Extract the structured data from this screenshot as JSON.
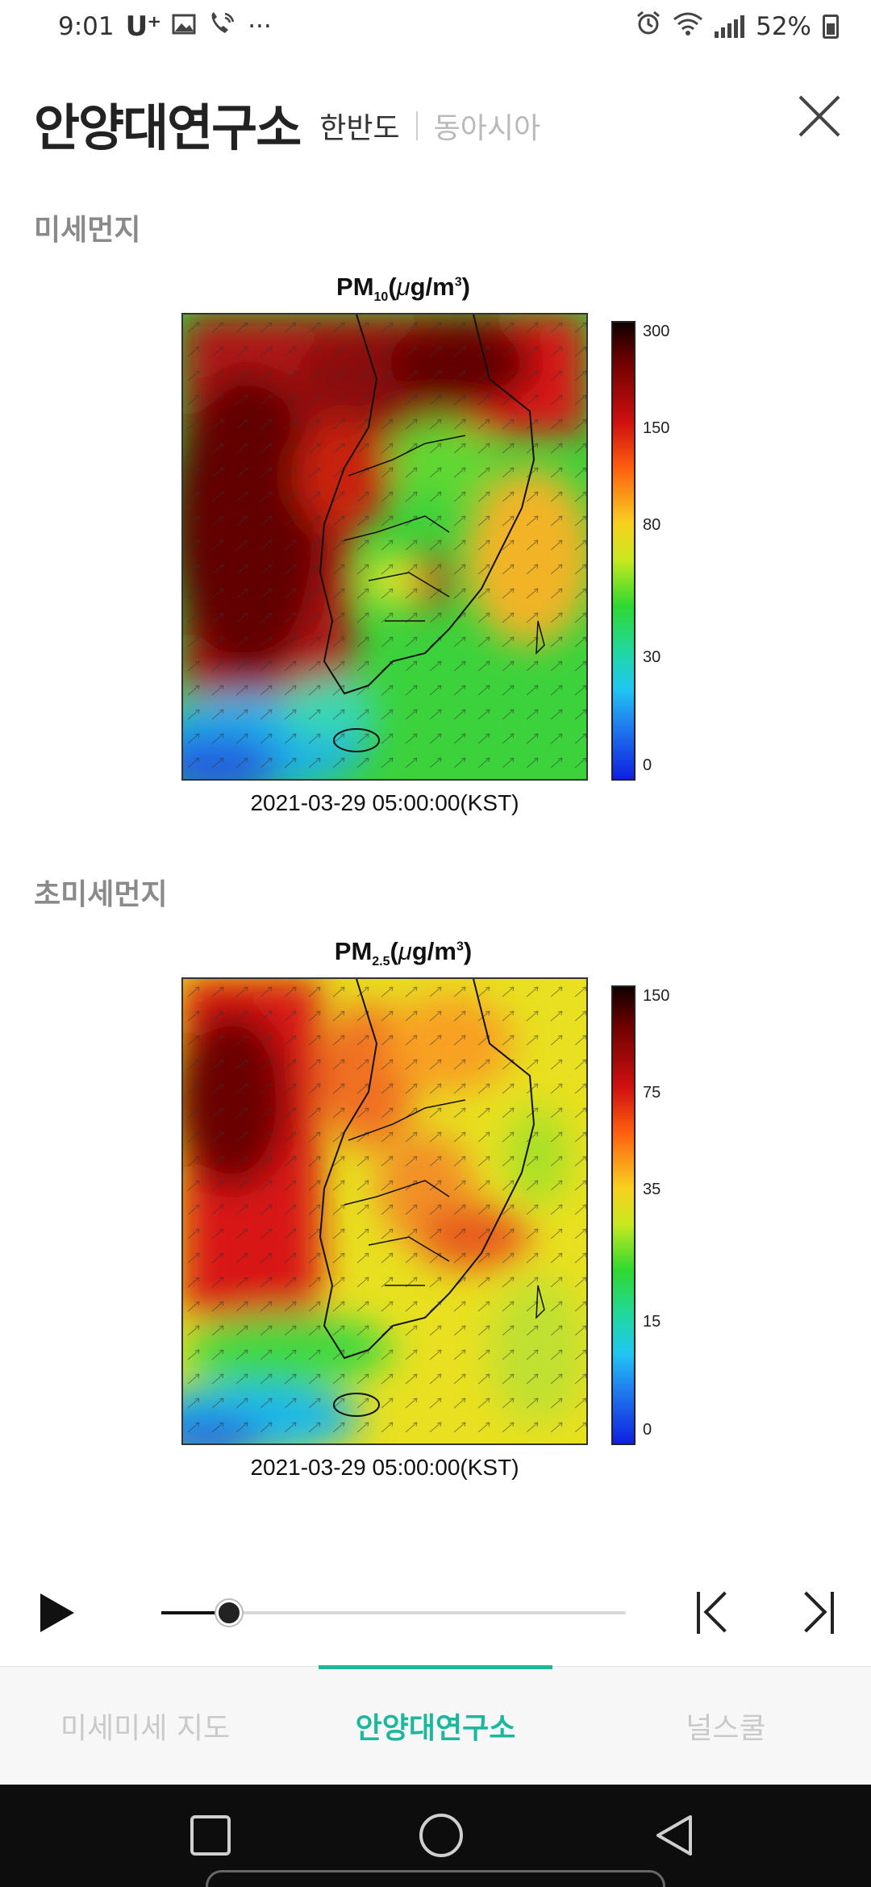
{
  "status_bar": {
    "time": "9:01",
    "carrier": "U⁺",
    "more": "···",
    "battery": "52%",
    "left_icons": [
      "gallery-icon",
      "wifi-call-icon"
    ],
    "right_icons": [
      "alarm-icon",
      "wifi-icon",
      "signal-icon",
      "battery-icon"
    ]
  },
  "header": {
    "title": "안양대연구소",
    "region_tabs": [
      {
        "label": "한반도",
        "active": true
      },
      {
        "label": "동아시아",
        "active": false
      }
    ]
  },
  "sections": [
    {
      "label": "미세먼지",
      "figure": {
        "title_main": "PM",
        "title_sub": "10",
        "title_unit_pre": "(",
        "title_unit_mu": "μ",
        "title_unit_mid": "g/m",
        "title_unit_sup": "3",
        "title_unit_post": ")",
        "timestamp": "2021-03-29 05:00:00(KST)",
        "colorbar_ticks": [
          "300",
          "150",
          "80",
          "30",
          "0"
        ]
      }
    },
    {
      "label": "초미세먼지",
      "figure": {
        "title_main": "PM",
        "title_sub": "2.5",
        "title_unit_pre": "(",
        "title_unit_mu": "μ",
        "title_unit_mid": "g/m",
        "title_unit_sup": "3",
        "title_unit_post": ")",
        "timestamp": "2021-03-29 05:00:00(KST)",
        "colorbar_ticks": [
          "150",
          "75",
          "35",
          "15",
          "0"
        ]
      }
    }
  ],
  "playback": {
    "progress": 0.145
  },
  "bottom_tabs": [
    {
      "label": "미세미세 지도",
      "active": false
    },
    {
      "label": "안양대연구소",
      "active": true
    },
    {
      "label": "널스쿨",
      "active": false
    }
  ],
  "colors": {
    "accent": "#1db89c",
    "inactive_tab": "#c9c9c9"
  }
}
